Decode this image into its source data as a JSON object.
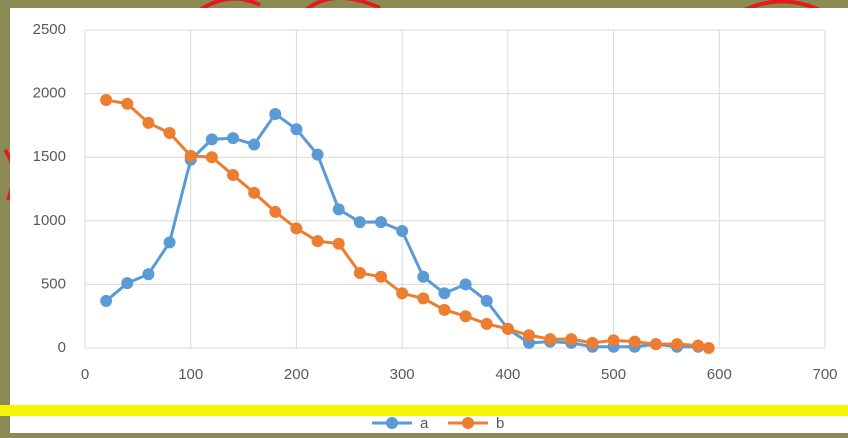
{
  "chart_data": {
    "type": "line",
    "series": [
      {
        "name": "a",
        "color": "#5b9bd5",
        "x": [
          20,
          40,
          60,
          80,
          100,
          120,
          140,
          160,
          180,
          200,
          220,
          240,
          260,
          280,
          300,
          320,
          340,
          360,
          380,
          400,
          420,
          440,
          460,
          480,
          500,
          520,
          540,
          560,
          580
        ],
        "values": [
          370,
          510,
          580,
          830,
          1480,
          1640,
          1650,
          1600,
          1840,
          1720,
          1520,
          1090,
          990,
          990,
          920,
          560,
          430,
          500,
          370,
          150,
          40,
          50,
          40,
          10,
          10,
          10,
          30,
          10,
          10
        ]
      },
      {
        "name": "b",
        "color": "#ed7d31",
        "x": [
          20,
          40,
          60,
          80,
          100,
          120,
          140,
          160,
          180,
          200,
          220,
          240,
          260,
          280,
          300,
          320,
          340,
          360,
          380,
          400,
          420,
          440,
          460,
          480,
          500,
          520,
          540,
          560,
          580,
          590
        ],
        "values": [
          1950,
          1920,
          1770,
          1690,
          1510,
          1500,
          1360,
          1220,
          1070,
          940,
          840,
          820,
          590,
          560,
          430,
          390,
          300,
          250,
          190,
          150,
          100,
          70,
          70,
          40,
          60,
          50,
          30,
          30,
          20,
          0
        ]
      }
    ],
    "xlim": [
      0,
      700
    ],
    "xticks": [
      0,
      100,
      200,
      300,
      400,
      500,
      600,
      700
    ],
    "ylim": [
      0,
      2500
    ],
    "yticks": [
      0,
      500,
      1000,
      1500,
      2000,
      2500
    ],
    "grid": true,
    "legend": "bottom"
  }
}
